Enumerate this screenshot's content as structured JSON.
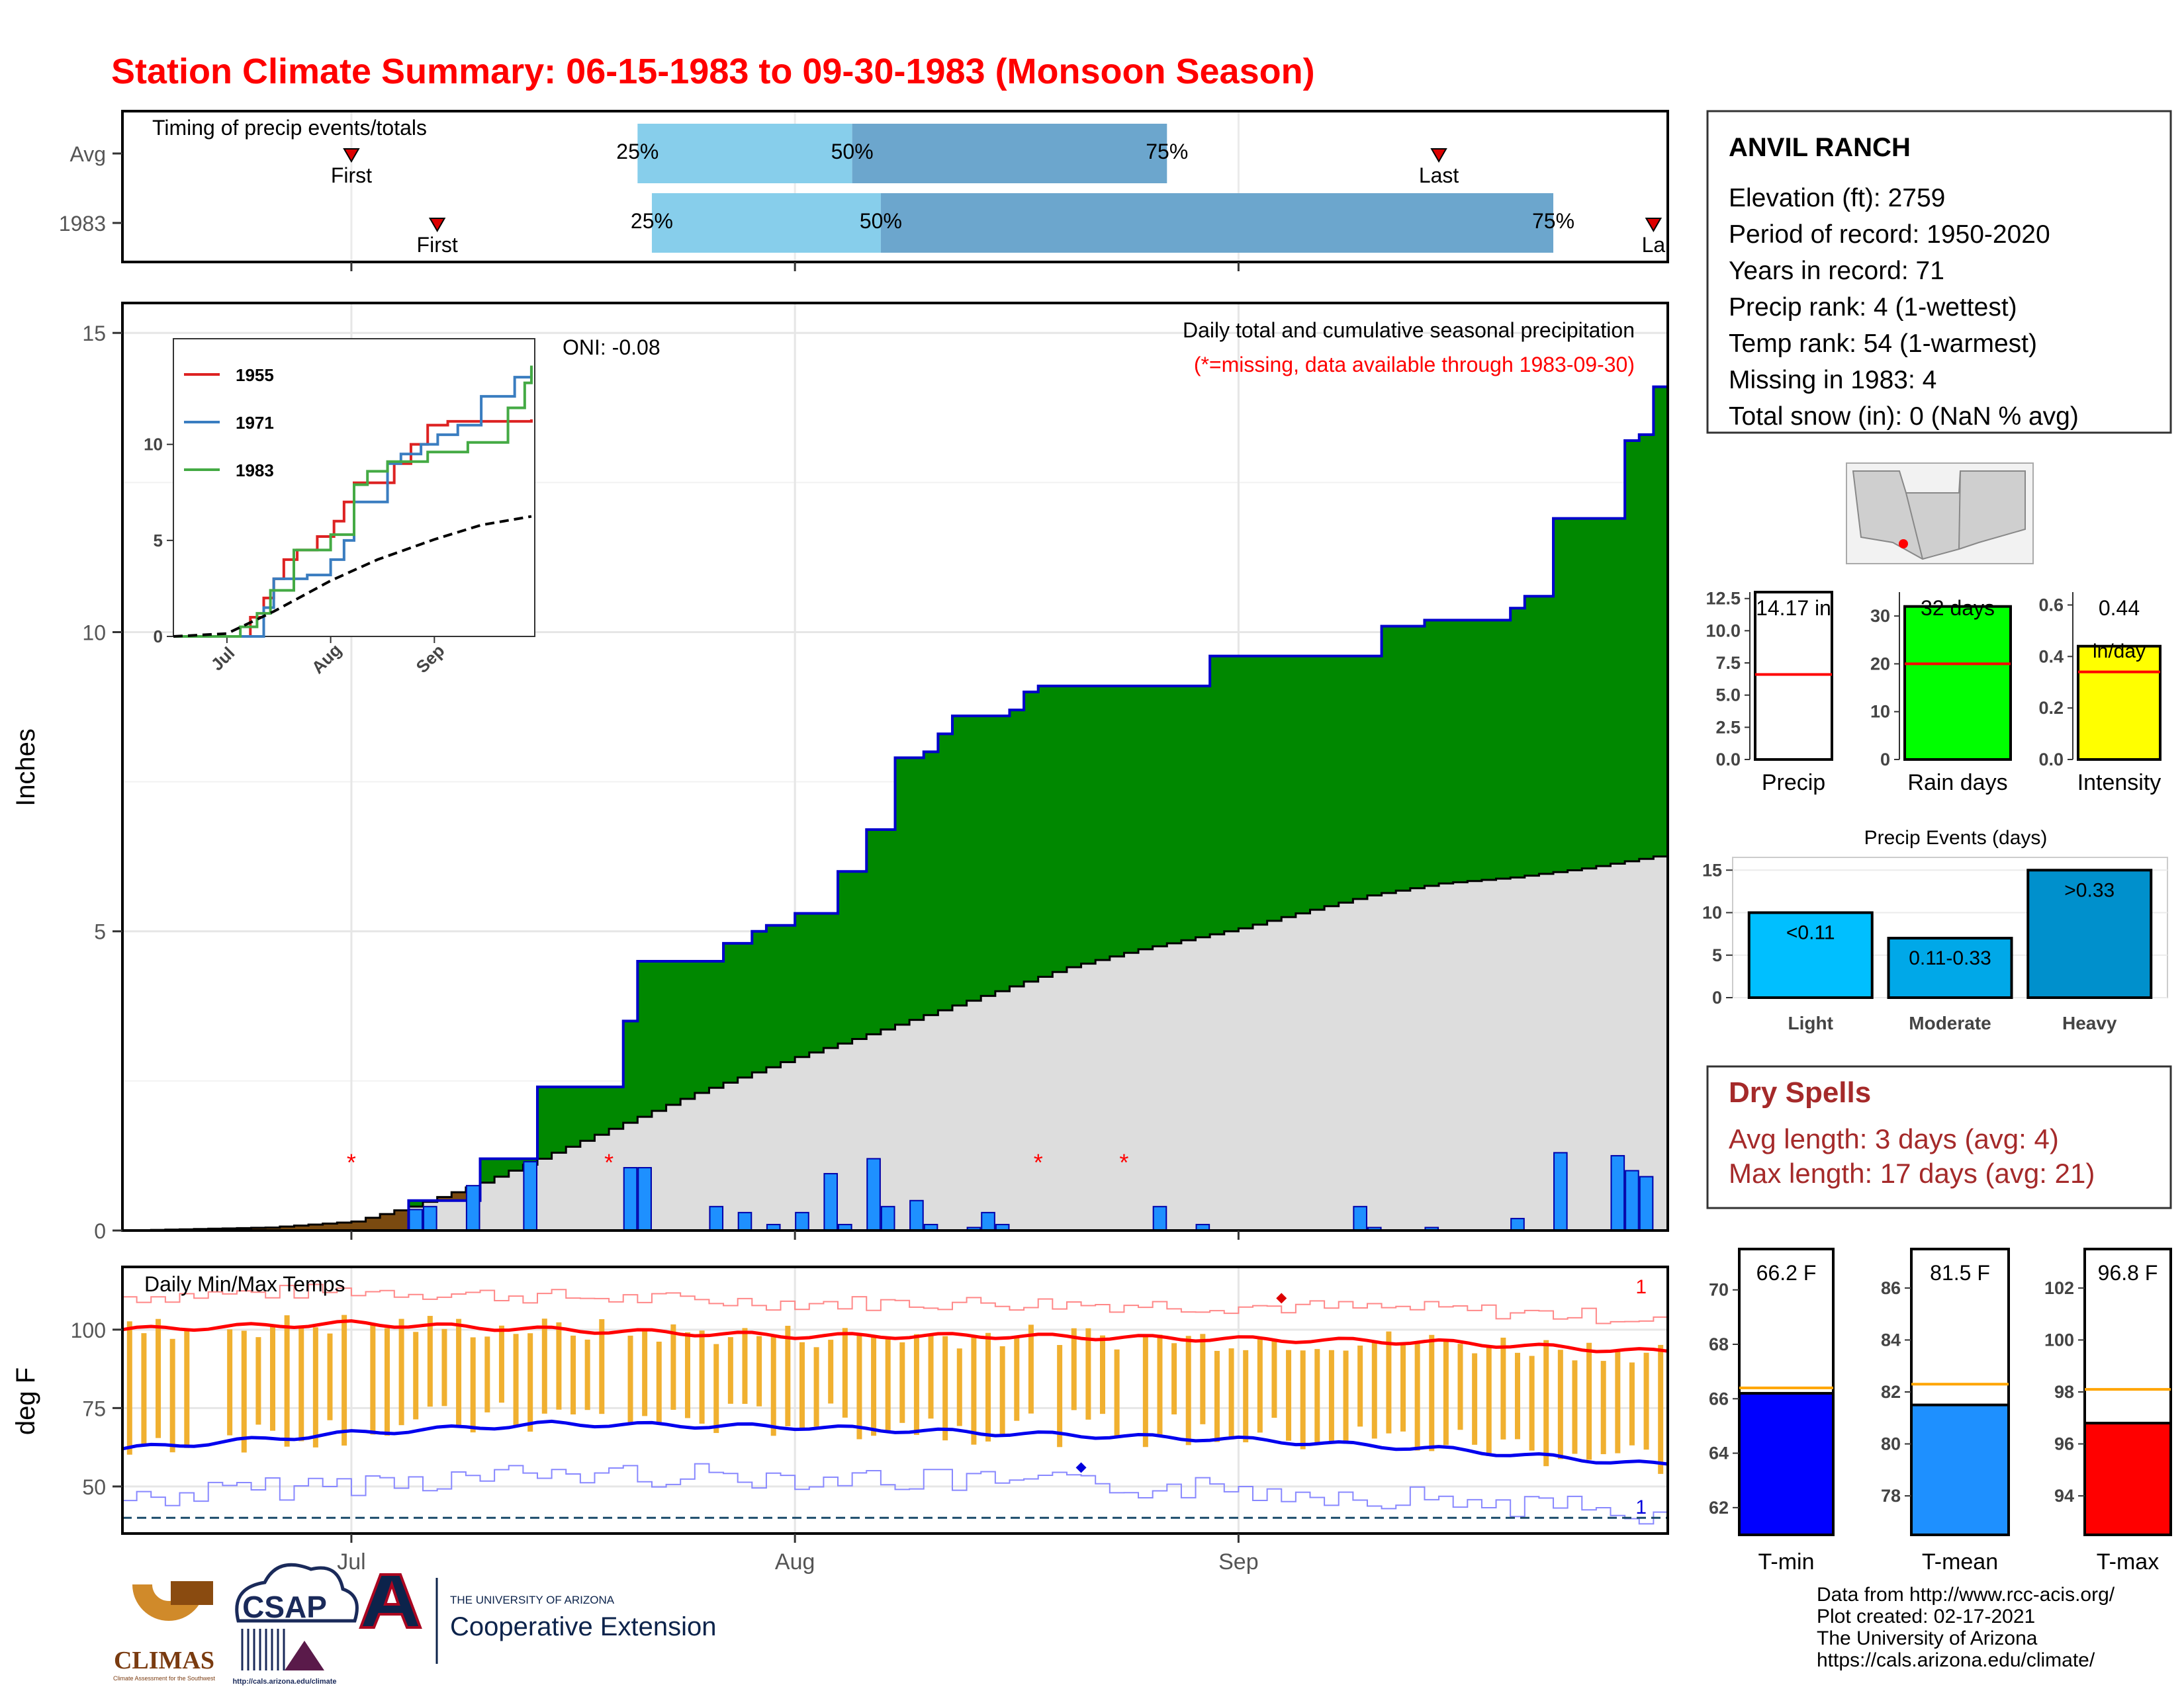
{
  "title": "Station Climate Summary: 06-15-1983 to 09-30-1983 (Monsoon Season)",
  "colors": {
    "title": "#ff0000",
    "green": "#008800",
    "brown": "#7a4a10",
    "avg_fill": "#dddddd",
    "bar": "#1e90ff",
    "tmax": "#ff0000",
    "tmin": "#0000ee",
    "range_bar": "#f0b030",
    "q_light": "#87ceeb",
    "q_dark": "#6ca6cd",
    "dry": "#a52a2a"
  },
  "timing": {
    "title": "Timing of precip events/totals",
    "rows": [
      {
        "label": "Avg",
        "first": {
          "date": "1983-07-01",
          "label": "First"
        },
        "last": {
          "date": "1983-09-15",
          "label": "Last"
        },
        "q25": {
          "date": "1983-07-21",
          "label": "25%"
        },
        "q50": {
          "date": "1983-08-05",
          "label": "50%"
        },
        "q75": {
          "date": "1983-08-27",
          "label": "75%"
        }
      },
      {
        "label": "1983",
        "first": {
          "date": "1983-07-07",
          "label": "First"
        },
        "last": {
          "date": "1983-09-30",
          "label": "La"
        },
        "q25": {
          "date": "1983-07-22",
          "label": "25%"
        },
        "q50": {
          "date": "1983-08-07",
          "label": "50%"
        },
        "q75": {
          "date": "1983-09-23",
          "label": "75%"
        }
      }
    ]
  },
  "chart_data": [
    {
      "type": "area",
      "name": "main-precip",
      "title": "Daily total and cumulative seasonal precipitation",
      "subtitle": "(*=missing, data available through 1983-09-30)",
      "annotation": "ONI: -0.08",
      "ylabel": "Inches",
      "ylim": [
        0,
        15.5
      ],
      "yticks": [
        0,
        5,
        10,
        15
      ],
      "xlim": [
        "1983-06-15",
        "1983-09-30"
      ],
      "xticks": [
        {
          "date": "1983-07-01",
          "label": "Jul"
        },
        {
          "date": "1983-08-01",
          "label": "Aug"
        },
        {
          "date": "1983-09-01",
          "label": "Sep"
        }
      ],
      "cumulative_1983_steps": [
        [
          "1983-06-15",
          0
        ],
        [
          "1983-07-05",
          0.5
        ],
        [
          "1983-07-10",
          1.2
        ],
        [
          "1983-07-14",
          2.4
        ],
        [
          "1983-07-20",
          3.5
        ],
        [
          "1983-07-21",
          4.5
        ],
        [
          "1983-07-26",
          4.5
        ],
        [
          "1983-07-27",
          4.8
        ],
        [
          "1983-07-29",
          5.0
        ],
        [
          "1983-07-30",
          5.1
        ],
        [
          "1983-08-01",
          5.3
        ],
        [
          "1983-08-04",
          6.0
        ],
        [
          "1983-08-06",
          6.7
        ],
        [
          "1983-08-08",
          7.9
        ],
        [
          "1983-08-10",
          8.0
        ],
        [
          "1983-08-11",
          8.3
        ],
        [
          "1983-08-12",
          8.6
        ],
        [
          "1983-08-16",
          8.7
        ],
        [
          "1983-08-17",
          9.0
        ],
        [
          "1983-08-18",
          9.1
        ],
        [
          "1983-08-29",
          9.1
        ],
        [
          "1983-08-30",
          9.6
        ],
        [
          "1983-09-10",
          9.6
        ],
        [
          "1983-09-11",
          10.1
        ],
        [
          "1983-09-14",
          10.2
        ],
        [
          "1983-09-20",
          10.4
        ],
        [
          "1983-09-21",
          10.6
        ],
        [
          "1983-09-23",
          11.9
        ],
        [
          "1983-09-28",
          13.2
        ],
        [
          "1983-09-29",
          13.3
        ],
        [
          "1983-09-30",
          14.1
        ]
      ],
      "cumulative_avg": [
        [
          "1983-06-15",
          0
        ],
        [
          "1983-06-25",
          0.05
        ],
        [
          "1983-07-01",
          0.15
        ],
        [
          "1983-07-05",
          0.4
        ],
        [
          "1983-07-10",
          0.8
        ],
        [
          "1983-07-15",
          1.3
        ],
        [
          "1983-07-20",
          1.8
        ],
        [
          "1983-07-25",
          2.3
        ],
        [
          "1983-08-01",
          2.9
        ],
        [
          "1983-08-05",
          3.2
        ],
        [
          "1983-08-10",
          3.6
        ],
        [
          "1983-08-15",
          4.0
        ],
        [
          "1983-08-20",
          4.4
        ],
        [
          "1983-08-25",
          4.7
        ],
        [
          "1983-09-01",
          5.05
        ],
        [
          "1983-09-05",
          5.3
        ],
        [
          "1983-09-10",
          5.6
        ],
        [
          "1983-09-15",
          5.8
        ],
        [
          "1983-09-20",
          5.9
        ],
        [
          "1983-09-25",
          6.05
        ],
        [
          "1983-09-30",
          6.25
        ]
      ],
      "daily_bars": [
        [
          "1983-07-05",
          0.35
        ],
        [
          "1983-07-06",
          0.4
        ],
        [
          "1983-07-09",
          0.75
        ],
        [
          "1983-07-13",
          1.15
        ],
        [
          "1983-07-20",
          1.05
        ],
        [
          "1983-07-21",
          1.05
        ],
        [
          "1983-07-26",
          0.4
        ],
        [
          "1983-07-28",
          0.3
        ],
        [
          "1983-07-30",
          0.1
        ],
        [
          "1983-08-01",
          0.3
        ],
        [
          "1983-08-03",
          0.95
        ],
        [
          "1983-08-04",
          0.1
        ],
        [
          "1983-08-06",
          1.2
        ],
        [
          "1983-08-07",
          0.4
        ],
        [
          "1983-08-09",
          0.5
        ],
        [
          "1983-08-10",
          0.1
        ],
        [
          "1983-08-13",
          0.05
        ],
        [
          "1983-08-14",
          0.3
        ],
        [
          "1983-08-15",
          0.1
        ],
        [
          "1983-08-26",
          0.4
        ],
        [
          "1983-08-29",
          0.1
        ],
        [
          "1983-09-09",
          0.4
        ],
        [
          "1983-09-10",
          0.05
        ],
        [
          "1983-09-14",
          0.05
        ],
        [
          "1983-09-20",
          0.2
        ],
        [
          "1983-09-23",
          1.3
        ],
        [
          "1983-09-27",
          1.25
        ],
        [
          "1983-09-28",
          1.0
        ],
        [
          "1983-09-29",
          0.9
        ]
      ],
      "missing_days": [
        "1983-07-01",
        "1983-07-19",
        "1983-08-18",
        "1983-08-24"
      ]
    },
    {
      "type": "line",
      "name": "inset-cumulative",
      "xticks": [
        "Jul",
        "Aug",
        "Sep"
      ],
      "yticks": [
        0,
        5,
        10
      ],
      "ylim": [
        0,
        15.5
      ],
      "series": [
        {
          "name": "1955",
          "color": "#dd2222",
          "values": [
            [
              "1983-06-15",
              0
            ],
            [
              "1983-07-05",
              0
            ],
            [
              "1983-07-08",
              1
            ],
            [
              "1983-07-12",
              2
            ],
            [
              "1983-07-15",
              3
            ],
            [
              "1983-07-18",
              4
            ],
            [
              "1983-07-22",
              4.5
            ],
            [
              "1983-07-28",
              5.2
            ],
            [
              "1983-08-02",
              6
            ],
            [
              "1983-08-05",
              7
            ],
            [
              "1983-08-08",
              8
            ],
            [
              "1983-08-15",
              8
            ],
            [
              "1983-08-20",
              9
            ],
            [
              "1983-08-25",
              10
            ],
            [
              "1983-08-30",
              11
            ],
            [
              "1983-09-05",
              11.2
            ],
            [
              "1983-09-30",
              11.3
            ]
          ]
        },
        {
          "name": "1971",
          "color": "#3a7dc0",
          "values": [
            [
              "1983-06-15",
              0
            ],
            [
              "1983-07-10",
              0
            ],
            [
              "1983-07-12",
              1.5
            ],
            [
              "1983-07-15",
              3
            ],
            [
              "1983-07-18",
              3
            ],
            [
              "1983-07-25",
              3.2
            ],
            [
              "1983-08-01",
              4
            ],
            [
              "1983-08-05",
              5
            ],
            [
              "1983-08-08",
              7
            ],
            [
              "1983-08-12",
              7
            ],
            [
              "1983-08-18",
              9
            ],
            [
              "1983-08-22",
              9.5
            ],
            [
              "1983-08-28",
              10
            ],
            [
              "1983-09-02",
              10.5
            ],
            [
              "1983-09-08",
              11
            ],
            [
              "1983-09-15",
              12.5
            ],
            [
              "1983-09-25",
              13.5
            ],
            [
              "1983-09-30",
              14
            ]
          ]
        },
        {
          "name": "1983",
          "color": "#44aa44",
          "values": [
            [
              "1983-06-15",
              0
            ],
            [
              "1983-07-05",
              0.5
            ],
            [
              "1983-07-10",
              1.2
            ],
            [
              "1983-07-14",
              2.4
            ],
            [
              "1983-07-21",
              4.5
            ],
            [
              "1983-08-01",
              5.3
            ],
            [
              "1983-08-08",
              7.9
            ],
            [
              "1983-08-12",
              8.6
            ],
            [
              "1983-08-18",
              9.1
            ],
            [
              "1983-08-30",
              9.6
            ],
            [
              "1983-09-11",
              10.1
            ],
            [
              "1983-09-23",
              11.9
            ],
            [
              "1983-09-28",
              13.2
            ],
            [
              "1983-09-30",
              14.1
            ]
          ]
        },
        {
          "name": "avg",
          "color": "#000000",
          "values": [
            [
              "1983-06-15",
              0
            ],
            [
              "1983-07-01",
              0.15
            ],
            [
              "1983-07-15",
              1.3
            ],
            [
              "1983-08-01",
              2.9
            ],
            [
              "1983-08-15",
              4.0
            ],
            [
              "1983-09-01",
              5.05
            ],
            [
              "1983-09-15",
              5.8
            ],
            [
              "1983-09-30",
              6.25
            ]
          ]
        }
      ]
    },
    {
      "type": "line",
      "name": "temperature",
      "title": "Daily Min/Max Temps",
      "ylabel": "deg F",
      "ylim": [
        35,
        120
      ],
      "yticks": [
        50,
        75,
        100
      ],
      "tmax_avg": [
        [
          "1983-06-15",
          100
        ],
        [
          "1983-07-01",
          102
        ],
        [
          "1983-07-15",
          100
        ],
        [
          "1983-08-01",
          98
        ],
        [
          "1983-08-15",
          98
        ],
        [
          "1983-09-01",
          97
        ],
        [
          "1983-09-15",
          96
        ],
        [
          "1983-09-30",
          93
        ]
      ],
      "tmin_avg": [
        [
          "1983-06-15",
          62
        ],
        [
          "1983-07-01",
          67
        ],
        [
          "1983-07-15",
          70
        ],
        [
          "1983-08-01",
          69
        ],
        [
          "1983-08-15",
          67
        ],
        [
          "1983-09-01",
          65
        ],
        [
          "1983-09-15",
          62
        ],
        [
          "1983-09-30",
          57
        ]
      ],
      "record_max_label": "1",
      "record_min_label": "1",
      "baseline_f": 40
    },
    {
      "type": "bar",
      "name": "precip-totals",
      "categories": [
        "Precip",
        "Rain days",
        "Intensity"
      ],
      "panels": [
        {
          "category": "Precip",
          "value": 14.17,
          "label": "14.17 in",
          "avg": 6.6,
          "ylim": [
            0,
            13
          ],
          "yticks": [
            "0.0",
            "2.5",
            "5.0",
            "7.5",
            "10.0",
            "12.5"
          ],
          "tickvals": [
            0,
            2.5,
            5,
            7.5,
            10,
            12.5
          ],
          "color": "#ffffff"
        },
        {
          "category": "Rain days",
          "value": 32,
          "label": "32 days",
          "avg": 20,
          "ylim": [
            0,
            35
          ],
          "yticks": [
            "0",
            "10",
            "20",
            "30"
          ],
          "tickvals": [
            0,
            10,
            20,
            30
          ],
          "color": "#00ff00"
        },
        {
          "category": "Intensity",
          "value": 0.44,
          "label": "0.44",
          "unit": "in/day",
          "avg": 0.34,
          "ylim": [
            0,
            0.65
          ],
          "yticks": [
            "0.0",
            "0.2",
            "0.4",
            "0.6"
          ],
          "tickvals": [
            0,
            0.2,
            0.4,
            0.6
          ],
          "color": "#ffff00"
        }
      ]
    },
    {
      "type": "bar",
      "name": "precip-events",
      "title": "Precip Events (days)",
      "categories": [
        "Light",
        "Moderate",
        "Heavy"
      ],
      "values": [
        10,
        7,
        15
      ],
      "labels": [
        "<0.11",
        "0.11-0.33",
        ">0.33"
      ],
      "yticks": [
        0,
        5,
        10,
        15
      ],
      "ylim": [
        0,
        16.5
      ]
    },
    {
      "type": "bar",
      "name": "temp-summary",
      "categories": [
        "T-min",
        "T-mean",
        "T-max"
      ],
      "panels": [
        {
          "category": "T-min",
          "value": 66.2,
          "label": "66.2 F",
          "avg": 66.4,
          "ylim": [
            61,
            71.5
          ],
          "yticks": [
            62,
            64,
            66,
            68,
            70
          ],
          "color": "#0000ff"
        },
        {
          "category": "T-mean",
          "value": 81.5,
          "label": "81.5 F",
          "avg": 82.3,
          "ylim": [
            76.5,
            87.5
          ],
          "yticks": [
            78,
            80,
            82,
            84,
            86
          ],
          "color": "#1e90ff"
        },
        {
          "category": "T-max",
          "value": 96.8,
          "label": "96.8 F",
          "avg": 98.1,
          "ylim": [
            92.5,
            103.5
          ],
          "yticks": [
            94,
            96,
            98,
            100,
            102
          ],
          "color": "#ff0000"
        }
      ]
    }
  ],
  "station": {
    "name": "ANVIL RANCH",
    "lines": [
      "Elevation (ft): 2759",
      "Period of record: 1950-2020",
      "Years in record: 71",
      "Precip rank: 4 (1-wettest)",
      "Temp rank: 54 (1-warmest)",
      "Missing in 1983: 4",
      "Total snow (in): 0 (NaN % avg)"
    ]
  },
  "dry_spells": {
    "title": "Dry Spells",
    "lines": [
      "Avg length: 3 days (avg: 4)",
      "Max length: 17 days (avg: 21)"
    ]
  },
  "footer": {
    "lines": [
      "Data from http://www.rcc-acis.org/",
      "Plot created: 02-17-2021",
      "The University of Arizona",
      "https://cals.arizona.edu/climate/"
    ]
  },
  "logos": {
    "climas": "CLIMAS",
    "climas_sub": "Climate Assessment for the Southwest",
    "csap": "CSAP",
    "csap_url": "http://cals.arizona.edu/climate",
    "ua_small": "THE UNIVERSITY OF ARIZONA",
    "ua_big": "Cooperative Extension"
  }
}
